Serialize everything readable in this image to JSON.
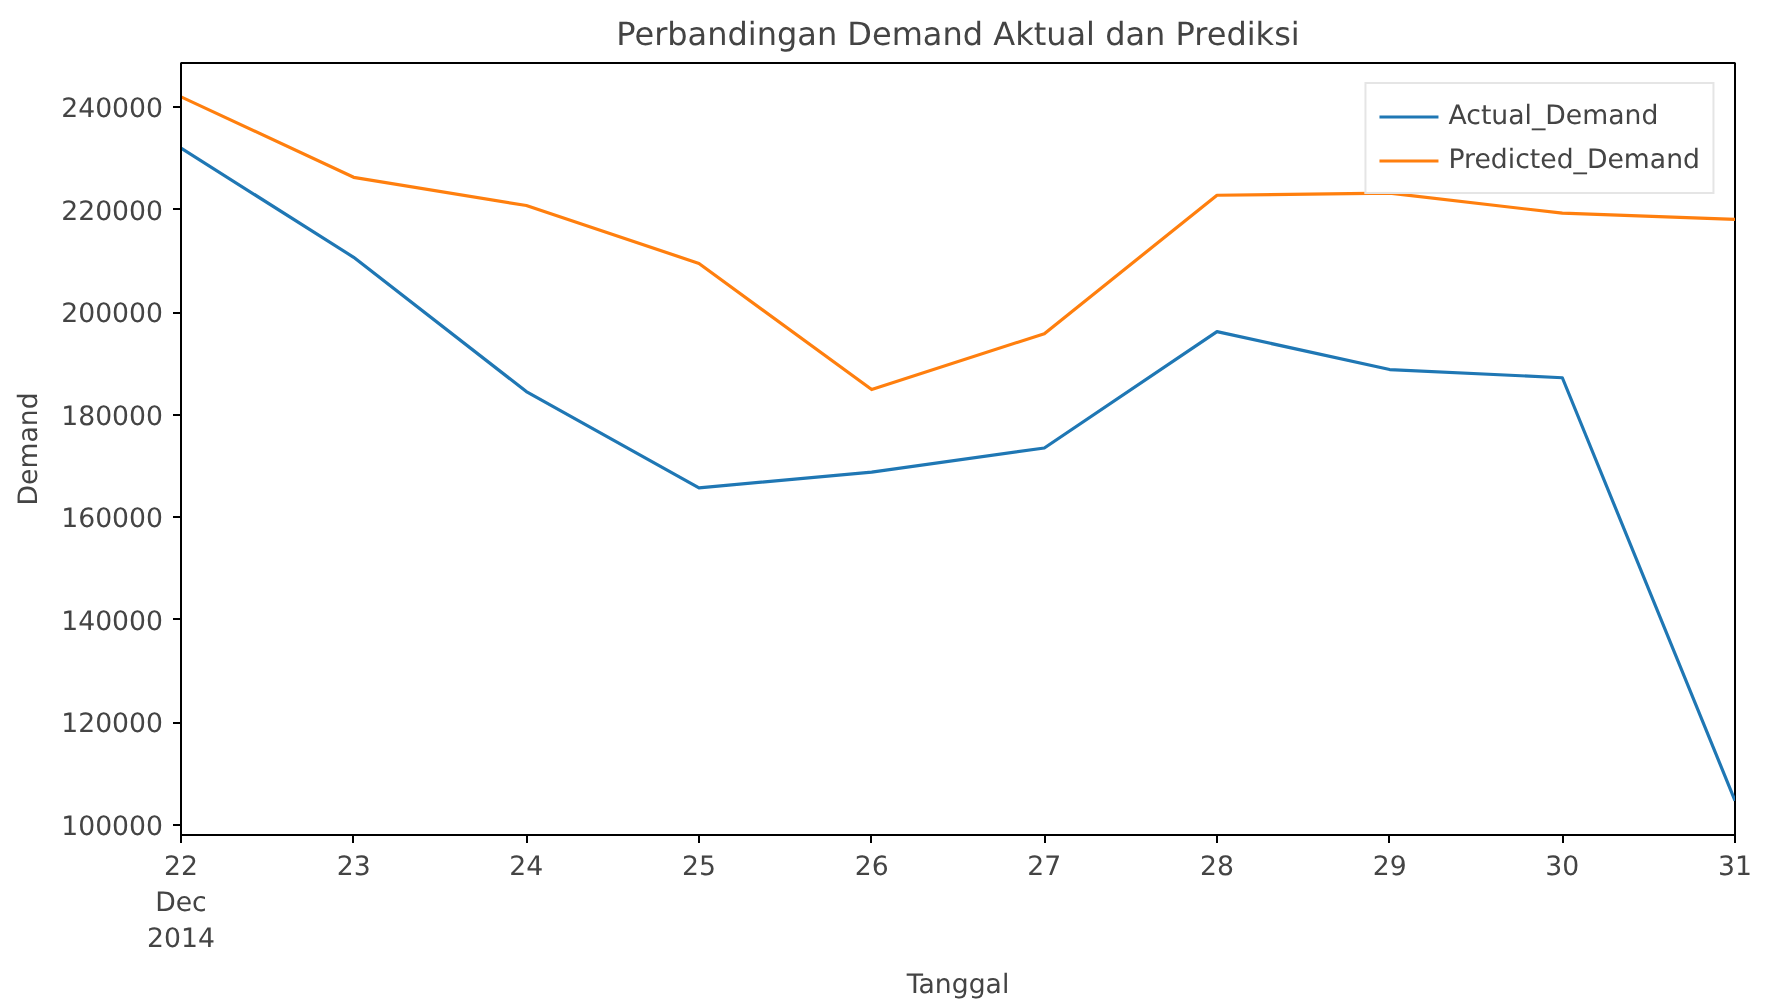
{
  "chart_data": {
    "type": "line",
    "title": "Perbandingan Demand Aktual dan Prediksi",
    "xlabel": "Tanggal",
    "ylabel": "Demand",
    "x": [
      "2014-12-22",
      "2014-12-23",
      "2014-12-24",
      "2014-12-25",
      "2014-12-26",
      "2014-12-27",
      "2014-12-28",
      "2014-12-29",
      "2014-12-30",
      "2014-12-31"
    ],
    "series": [
      {
        "name": "Actual_Demand",
        "color": "#1f77b4",
        "values": [
          232000,
          210700,
          184500,
          165700,
          168800,
          173500,
          196200,
          188800,
          187200,
          104700
        ]
      },
      {
        "name": "Predicted_Demand",
        "color": "#ff7f0e",
        "values": [
          242000,
          226300,
          220800,
          209500,
          184900,
          195800,
          222800,
          223200,
          219300,
          218100
        ]
      }
    ],
    "xlim": [
      "2014-12-22",
      "2014-12-31"
    ],
    "xticks": [
      {
        "value": "2014-12-22",
        "label": "22\nDec\n2014"
      },
      {
        "value": "2014-12-23",
        "label": "23"
      },
      {
        "value": "2014-12-24",
        "label": "24"
      },
      {
        "value": "2014-12-25",
        "label": "25"
      },
      {
        "value": "2014-12-26",
        "label": "26"
      },
      {
        "value": "2014-12-27",
        "label": "27"
      },
      {
        "value": "2014-12-28",
        "label": "28"
      },
      {
        "value": "2014-12-29",
        "label": "29"
      },
      {
        "value": "2014-12-30",
        "label": "30"
      },
      {
        "value": "2014-12-31",
        "label": "31"
      }
    ],
    "ylim": [
      98000,
      248600
    ],
    "yticks": [
      100000,
      120000,
      140000,
      160000,
      180000,
      200000,
      220000,
      240000
    ],
    "grid": false,
    "legend": "top right",
    "line_style": "solid",
    "marker": "none"
  }
}
